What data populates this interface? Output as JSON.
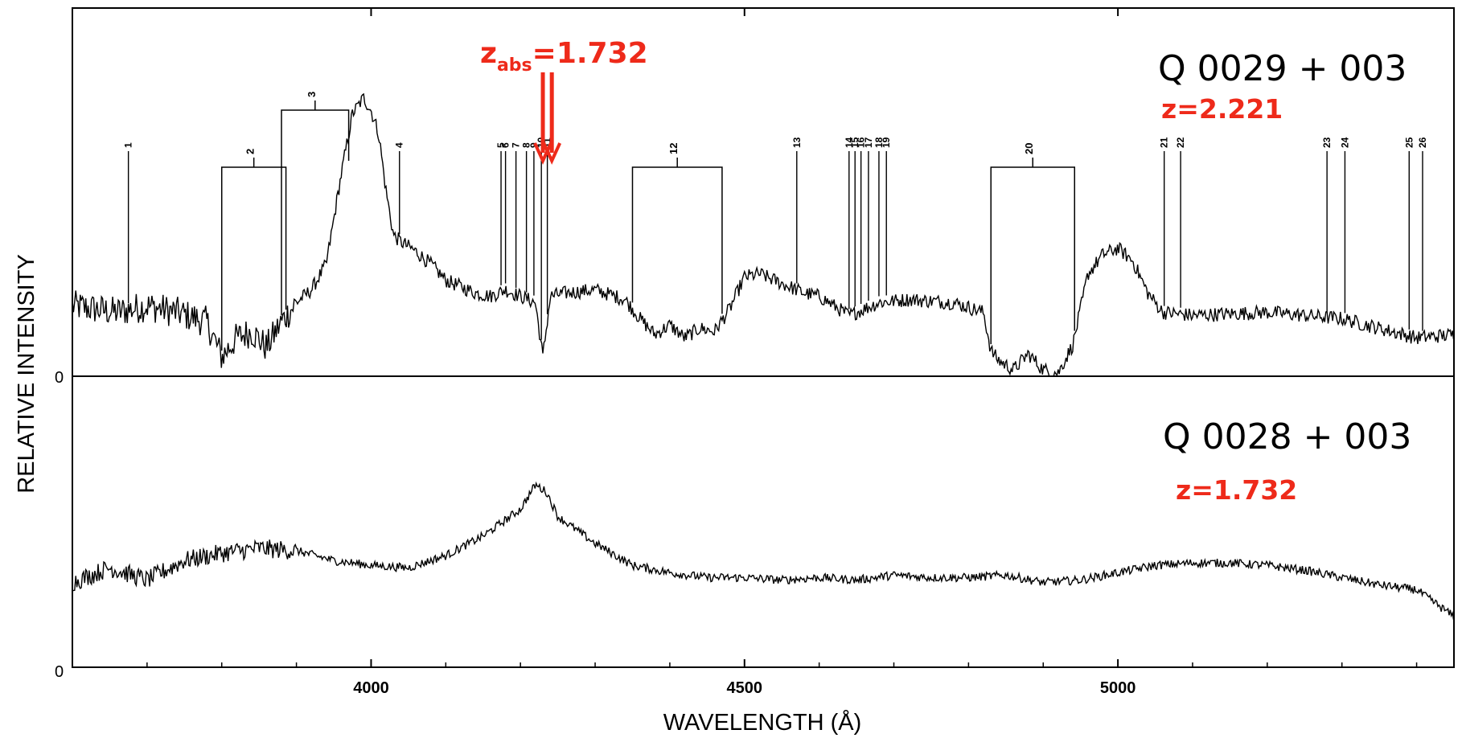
{
  "chart_data": {
    "type": "line",
    "xlabel": "WAVELENGTH (Å)",
    "ylabel": "RELATIVE INTENSITY",
    "xlim": [
      3600,
      5450
    ],
    "xticks": [
      4000,
      4500,
      5000
    ],
    "xtick_labels": [
      "4000",
      "4500",
      "5000"
    ],
    "zero_label": "0",
    "grid": false,
    "panels": [
      {
        "id": "top",
        "object": "Q 0029 + 003",
        "redshift": "z=2.221",
        "absorber_label_main": "z",
        "absorber_label_sub": "abs",
        "absorber_label_value": "=1.732",
        "absorber_wavelengths": [
          4230,
          4242
        ],
        "ylim": [
          0,
          1.0
        ],
        "spectrum": {
          "x": [
            3600,
            3660,
            3700,
            3740,
            3780,
            3800,
            3820,
            3840,
            3860,
            3880,
            3900,
            3920,
            3940,
            3960,
            3975,
            3990,
            4000,
            4010,
            4020,
            4030,
            4040,
            4060,
            4080,
            4100,
            4120,
            4140,
            4160,
            4180,
            4200,
            4220,
            4230,
            4240,
            4260,
            4300,
            4340,
            4360,
            4380,
            4400,
            4420,
            4440,
            4460,
            4480,
            4500,
            4520,
            4540,
            4560,
            4580,
            4600,
            4640,
            4680,
            4720,
            4780,
            4820,
            4830,
            4840,
            4860,
            4880,
            4900,
            4920,
            4940,
            4960,
            4980,
            5000,
            5020,
            5040,
            5060,
            5100,
            5200,
            5300,
            5400,
            5450
          ],
          "y": [
            0.22,
            0.2,
            0.22,
            0.2,
            0.17,
            0.06,
            0.12,
            0.14,
            0.09,
            0.17,
            0.23,
            0.27,
            0.35,
            0.63,
            0.82,
            0.87,
            0.83,
            0.76,
            0.58,
            0.44,
            0.42,
            0.39,
            0.35,
            0.3,
            0.28,
            0.26,
            0.25,
            0.27,
            0.25,
            0.23,
            0.06,
            0.25,
            0.26,
            0.27,
            0.24,
            0.18,
            0.13,
            0.16,
            0.12,
            0.15,
            0.14,
            0.21,
            0.31,
            0.32,
            0.3,
            0.28,
            0.26,
            0.25,
            0.19,
            0.23,
            0.24,
            0.23,
            0.2,
            0.08,
            0.05,
            0.02,
            0.07,
            0.02,
            0.01,
            0.1,
            0.32,
            0.38,
            0.4,
            0.36,
            0.26,
            0.2,
            0.19,
            0.2,
            0.18,
            0.12,
            0.13
          ]
        },
        "line_ids": [
          {
            "label": "1",
            "x": 3675
          },
          {
            "label": "2",
            "x": 3800,
            "x2": 3886
          },
          {
            "label": "3",
            "x": 3880,
            "x2": 3970
          },
          {
            "label": "4",
            "x": 4038
          },
          {
            "label": "5",
            "x": 4174
          },
          {
            "label": "6",
            "x": 4180
          },
          {
            "label": "7",
            "x": 4194
          },
          {
            "label": "8",
            "x": 4208
          },
          {
            "label": "9",
            "x": 4218
          },
          {
            "label": "10",
            "x": 4228
          },
          {
            "label": "11",
            "x": 4236
          },
          {
            "label": "12",
            "x": 4350,
            "x2": 4470
          },
          {
            "label": "13",
            "x": 4570
          },
          {
            "label": "14",
            "x": 4640
          },
          {
            "label": "15",
            "x": 4648
          },
          {
            "label": "16",
            "x": 4656
          },
          {
            "label": "17",
            "x": 4666
          },
          {
            "label": "18",
            "x": 4680
          },
          {
            "label": "19",
            "x": 4690
          },
          {
            "label": "20",
            "x": 4830,
            "x2": 4942
          },
          {
            "label": "21",
            "x": 5062
          },
          {
            "label": "22",
            "x": 5084
          },
          {
            "label": "23",
            "x": 5280
          },
          {
            "label": "24",
            "x": 5304
          },
          {
            "label": "25",
            "x": 5390
          },
          {
            "label": "26",
            "x": 5408
          }
        ]
      },
      {
        "id": "bottom",
        "object": "Q 0028 + 003",
        "redshift": "z=1.732",
        "ylim": [
          0,
          1.0
        ],
        "spectrum": {
          "x": [
            3600,
            3650,
            3700,
            3750,
            3800,
            3850,
            3900,
            3950,
            4000,
            4050,
            4100,
            4150,
            4200,
            4220,
            4235,
            4250,
            4300,
            4350,
            4400,
            4450,
            4500,
            4550,
            4600,
            4650,
            4700,
            4750,
            4800,
            4850,
            4900,
            4950,
            5000,
            5050,
            5100,
            5150,
            5200,
            5250,
            5300,
            5350,
            5400,
            5450
          ],
          "y": [
            0.36,
            0.42,
            0.37,
            0.45,
            0.48,
            0.5,
            0.49,
            0.45,
            0.43,
            0.42,
            0.47,
            0.55,
            0.66,
            0.76,
            0.73,
            0.63,
            0.52,
            0.43,
            0.4,
            0.38,
            0.38,
            0.37,
            0.38,
            0.37,
            0.39,
            0.38,
            0.38,
            0.39,
            0.36,
            0.37,
            0.4,
            0.43,
            0.44,
            0.44,
            0.43,
            0.41,
            0.38,
            0.35,
            0.33,
            0.22
          ]
        }
      }
    ]
  }
}
